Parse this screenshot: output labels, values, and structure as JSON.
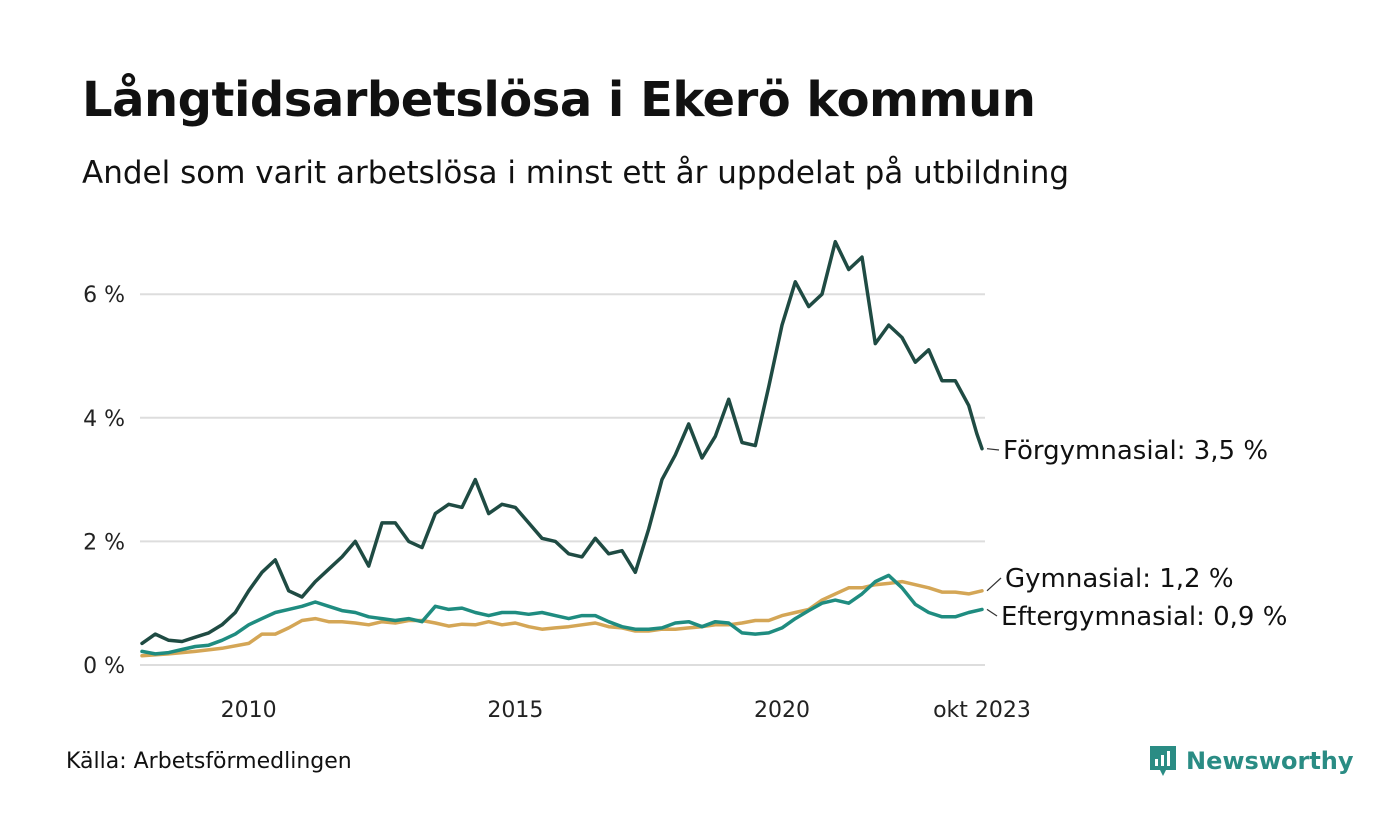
{
  "title": "Långtidsarbetslösa i Ekerö kommun",
  "subtitle": "Andel som varit arbetslösa i minst ett år uppdelat på utbildning",
  "source": "Källa: Arbetsförmedlingen",
  "brand": {
    "name": "Newsworthy",
    "icon": "newsworthy-logo-icon",
    "color": "#2a8c84"
  },
  "chart_data": {
    "type": "line",
    "title": "Långtidsarbetslösa i Ekerö kommun",
    "xlabel": "",
    "ylabel": "",
    "ylim": [
      0,
      7
    ],
    "grid": true,
    "yticks": [
      {
        "value": 0,
        "label": "0 %"
      },
      {
        "value": 2,
        "label": "2 %"
      },
      {
        "value": 4,
        "label": "4 %"
      },
      {
        "value": 6,
        "label": "6 %"
      }
    ],
    "xticks": [
      {
        "value": 2010,
        "label": "2010"
      },
      {
        "value": 2015,
        "label": "2015"
      },
      {
        "value": 2020,
        "label": "2020"
      },
      {
        "value": 2023.75,
        "label": "okt 2023"
      }
    ],
    "xlim": [
      2008.0,
      2023.75
    ],
    "series": [
      {
        "name": "Förgymnasial",
        "label": "Förgymnasial: 3,5 %",
        "last_value": 3.5,
        "color": "#1f4b43",
        "points": [
          [
            2008.0,
            0.35
          ],
          [
            2008.25,
            0.5
          ],
          [
            2008.5,
            0.4
          ],
          [
            2008.75,
            0.38
          ],
          [
            2009.0,
            0.45
          ],
          [
            2009.25,
            0.52
          ],
          [
            2009.5,
            0.65
          ],
          [
            2009.75,
            0.85
          ],
          [
            2010.0,
            1.2
          ],
          [
            2010.25,
            1.5
          ],
          [
            2010.5,
            1.7
          ],
          [
            2010.75,
            1.2
          ],
          [
            2011.0,
            1.1
          ],
          [
            2011.25,
            1.35
          ],
          [
            2011.5,
            1.55
          ],
          [
            2011.75,
            1.75
          ],
          [
            2012.0,
            2.0
          ],
          [
            2012.25,
            1.6
          ],
          [
            2012.5,
            2.3
          ],
          [
            2012.75,
            2.3
          ],
          [
            2013.0,
            2.0
          ],
          [
            2013.25,
            1.9
          ],
          [
            2013.5,
            2.45
          ],
          [
            2013.75,
            2.6
          ],
          [
            2014.0,
            2.55
          ],
          [
            2014.25,
            3.0
          ],
          [
            2014.5,
            2.45
          ],
          [
            2014.75,
            2.6
          ],
          [
            2015.0,
            2.55
          ],
          [
            2015.25,
            2.3
          ],
          [
            2015.5,
            2.05
          ],
          [
            2015.75,
            2.0
          ],
          [
            2016.0,
            1.8
          ],
          [
            2016.25,
            1.75
          ],
          [
            2016.5,
            2.05
          ],
          [
            2016.75,
            1.8
          ],
          [
            2017.0,
            1.85
          ],
          [
            2017.25,
            1.5
          ],
          [
            2017.5,
            2.2
          ],
          [
            2017.75,
            3.0
          ],
          [
            2018.0,
            3.4
          ],
          [
            2018.25,
            3.9
          ],
          [
            2018.5,
            3.35
          ],
          [
            2018.75,
            3.7
          ],
          [
            2019.0,
            4.3
          ],
          [
            2019.25,
            3.6
          ],
          [
            2019.5,
            3.55
          ],
          [
            2019.75,
            4.5
          ],
          [
            2020.0,
            5.5
          ],
          [
            2020.25,
            6.2
          ],
          [
            2020.5,
            5.8
          ],
          [
            2020.75,
            6.0
          ],
          [
            2021.0,
            6.85
          ],
          [
            2021.25,
            6.4
          ],
          [
            2021.5,
            6.6
          ],
          [
            2021.75,
            5.2
          ],
          [
            2022.0,
            5.5
          ],
          [
            2022.25,
            5.3
          ],
          [
            2022.5,
            4.9
          ],
          [
            2022.75,
            5.1
          ],
          [
            2023.0,
            4.6
          ],
          [
            2023.25,
            4.6
          ],
          [
            2023.5,
            4.2
          ],
          [
            2023.65,
            3.75
          ],
          [
            2023.75,
            3.5
          ]
        ]
      },
      {
        "name": "Gymnasial",
        "label": "Gymnasial: 1,2 %",
        "last_value": 1.2,
        "color": "#d4a656",
        "points": [
          [
            2008.0,
            0.15
          ],
          [
            2008.5,
            0.18
          ],
          [
            2009.0,
            0.22
          ],
          [
            2009.5,
            0.27
          ],
          [
            2010.0,
            0.35
          ],
          [
            2010.25,
            0.5
          ],
          [
            2010.5,
            0.5
          ],
          [
            2010.75,
            0.6
          ],
          [
            2011.0,
            0.72
          ],
          [
            2011.25,
            0.75
          ],
          [
            2011.5,
            0.7
          ],
          [
            2011.75,
            0.7
          ],
          [
            2012.0,
            0.68
          ],
          [
            2012.25,
            0.65
          ],
          [
            2012.5,
            0.7
          ],
          [
            2012.75,
            0.68
          ],
          [
            2013.0,
            0.72
          ],
          [
            2013.25,
            0.72
          ],
          [
            2013.5,
            0.68
          ],
          [
            2013.75,
            0.63
          ],
          [
            2014.0,
            0.66
          ],
          [
            2014.25,
            0.65
          ],
          [
            2014.5,
            0.7
          ],
          [
            2014.75,
            0.65
          ],
          [
            2015.0,
            0.68
          ],
          [
            2015.25,
            0.62
          ],
          [
            2015.5,
            0.58
          ],
          [
            2015.75,
            0.6
          ],
          [
            2016.0,
            0.62
          ],
          [
            2016.25,
            0.65
          ],
          [
            2016.5,
            0.68
          ],
          [
            2016.75,
            0.62
          ],
          [
            2017.0,
            0.6
          ],
          [
            2017.25,
            0.55
          ],
          [
            2017.5,
            0.55
          ],
          [
            2017.75,
            0.58
          ],
          [
            2018.0,
            0.58
          ],
          [
            2018.25,
            0.6
          ],
          [
            2018.5,
            0.62
          ],
          [
            2018.75,
            0.65
          ],
          [
            2019.0,
            0.65
          ],
          [
            2019.25,
            0.68
          ],
          [
            2019.5,
            0.72
          ],
          [
            2019.75,
            0.72
          ],
          [
            2020.0,
            0.8
          ],
          [
            2020.25,
            0.85
          ],
          [
            2020.5,
            0.9
          ],
          [
            2020.75,
            1.05
          ],
          [
            2021.0,
            1.15
          ],
          [
            2021.25,
            1.25
          ],
          [
            2021.5,
            1.25
          ],
          [
            2021.75,
            1.3
          ],
          [
            2022.0,
            1.32
          ],
          [
            2022.25,
            1.35
          ],
          [
            2022.5,
            1.3
          ],
          [
            2022.75,
            1.25
          ],
          [
            2023.0,
            1.18
          ],
          [
            2023.25,
            1.18
          ],
          [
            2023.5,
            1.15
          ],
          [
            2023.75,
            1.2
          ]
        ]
      },
      {
        "name": "Eftergymnasial",
        "label": "Eftergymnasial: 0,9 %",
        "last_value": 0.9,
        "color": "#1f8c80",
        "points": [
          [
            2008.0,
            0.22
          ],
          [
            2008.25,
            0.18
          ],
          [
            2008.5,
            0.2
          ],
          [
            2008.75,
            0.25
          ],
          [
            2009.0,
            0.3
          ],
          [
            2009.25,
            0.32
          ],
          [
            2009.5,
            0.4
          ],
          [
            2009.75,
            0.5
          ],
          [
            2010.0,
            0.65
          ],
          [
            2010.25,
            0.75
          ],
          [
            2010.5,
            0.85
          ],
          [
            2010.75,
            0.9
          ],
          [
            2011.0,
            0.95
          ],
          [
            2011.25,
            1.02
          ],
          [
            2011.5,
            0.95
          ],
          [
            2011.75,
            0.88
          ],
          [
            2012.0,
            0.85
          ],
          [
            2012.25,
            0.78
          ],
          [
            2012.5,
            0.75
          ],
          [
            2012.75,
            0.72
          ],
          [
            2013.0,
            0.75
          ],
          [
            2013.25,
            0.7
          ],
          [
            2013.5,
            0.95
          ],
          [
            2013.75,
            0.9
          ],
          [
            2014.0,
            0.92
          ],
          [
            2014.25,
            0.85
          ],
          [
            2014.5,
            0.8
          ],
          [
            2014.75,
            0.85
          ],
          [
            2015.0,
            0.85
          ],
          [
            2015.25,
            0.82
          ],
          [
            2015.5,
            0.85
          ],
          [
            2015.75,
            0.8
          ],
          [
            2016.0,
            0.75
          ],
          [
            2016.25,
            0.8
          ],
          [
            2016.5,
            0.8
          ],
          [
            2016.75,
            0.7
          ],
          [
            2017.0,
            0.62
          ],
          [
            2017.25,
            0.58
          ],
          [
            2017.5,
            0.58
          ],
          [
            2017.75,
            0.6
          ],
          [
            2018.0,
            0.68
          ],
          [
            2018.25,
            0.7
          ],
          [
            2018.5,
            0.62
          ],
          [
            2018.75,
            0.7
          ],
          [
            2019.0,
            0.68
          ],
          [
            2019.25,
            0.52
          ],
          [
            2019.5,
            0.5
          ],
          [
            2019.75,
            0.52
          ],
          [
            2020.0,
            0.6
          ],
          [
            2020.25,
            0.75
          ],
          [
            2020.5,
            0.88
          ],
          [
            2020.75,
            1.0
          ],
          [
            2021.0,
            1.05
          ],
          [
            2021.25,
            1.0
          ],
          [
            2021.5,
            1.15
          ],
          [
            2021.75,
            1.35
          ],
          [
            2022.0,
            1.45
          ],
          [
            2022.25,
            1.25
          ],
          [
            2022.5,
            0.98
          ],
          [
            2022.75,
            0.85
          ],
          [
            2023.0,
            0.78
          ],
          [
            2023.25,
            0.78
          ],
          [
            2023.5,
            0.85
          ],
          [
            2023.75,
            0.9
          ]
        ]
      }
    ]
  }
}
